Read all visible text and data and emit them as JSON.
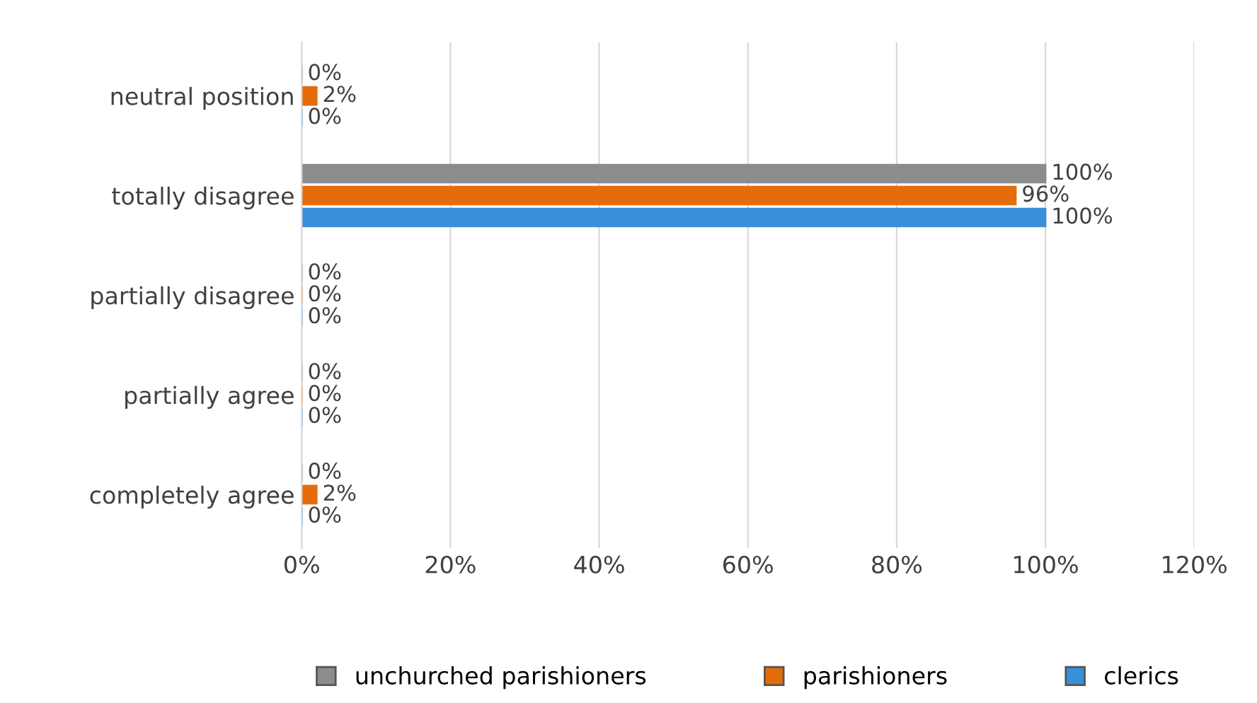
{
  "chart_data": {
    "type": "bar",
    "orientation": "horizontal",
    "categories": [
      "neutral position",
      "totally disagree",
      "partially disagree",
      "partially agree",
      "completely agree"
    ],
    "series": [
      {
        "name": "unchurched parishioners",
        "color": "#8c8c8c",
        "values": [
          0,
          100,
          0,
          0,
          0
        ],
        "value_labels": [
          "0%",
          "100%",
          "0%",
          "0%",
          "0%"
        ]
      },
      {
        "name": "parishioners",
        "color": "#e46c0a",
        "values": [
          2,
          96,
          0,
          0,
          2
        ],
        "value_labels": [
          "2%",
          "96%",
          "0%",
          "0%",
          "2%"
        ]
      },
      {
        "name": "clerics",
        "color": "#3a8fd9",
        "values": [
          0,
          100,
          0,
          0,
          0
        ],
        "value_labels": [
          "0%",
          "100%",
          "0%",
          "0%",
          "0%"
        ]
      }
    ],
    "xlim": [
      0,
      120
    ],
    "xticks": [
      {
        "value": 0,
        "label": "0%"
      },
      {
        "value": 20,
        "label": "20%"
      },
      {
        "value": 40,
        "label": "40%"
      },
      {
        "value": 60,
        "label": "60%"
      },
      {
        "value": 80,
        "label": "80%"
      },
      {
        "value": 100,
        "label": "100%"
      },
      {
        "value": 120,
        "label": "120%"
      }
    ],
    "grid": "x",
    "legend": "bottom"
  }
}
